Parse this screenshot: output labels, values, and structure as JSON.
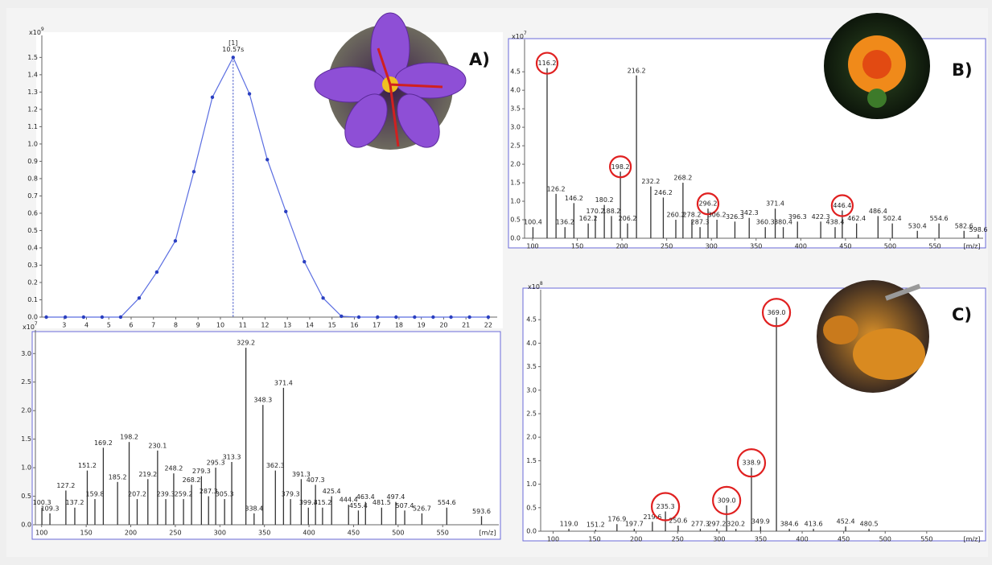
{
  "chart_data": [
    {
      "type": "line",
      "color": "#5b6ee1",
      "x": [
        2.2,
        3.05,
        3.87,
        4.7,
        5.53,
        6.36,
        7.15,
        7.98,
        8.81,
        9.64,
        10.57,
        11.3,
        12.1,
        12.93,
        13.76,
        14.6,
        15.42,
        16.2,
        17.04,
        17.87,
        18.7,
        19.53,
        20.33,
        21.16,
        22.0
      ],
      "values": [
        0,
        0,
        0,
        0,
        0,
        0.11,
        0.26,
        0.44,
        0.84,
        1.27,
        1.5,
        1.29,
        0.91,
        0.61,
        0.32,
        0.11,
        0.005,
        0,
        0,
        0,
        0,
        0,
        0,
        0,
        0
      ],
      "annotation": [
        "[1]",
        "10.57s"
      ],
      "y_unit": {
        "base": "x10",
        "exponent": 9
      },
      "xlim": [
        2.0,
        22.4
      ],
      "xticks": [
        3,
        4,
        5,
        6,
        7,
        8,
        9,
        10,
        11,
        12,
        13,
        14,
        15,
        16,
        17,
        18,
        19,
        20,
        21,
        22
      ],
      "ylim": [
        0,
        1.59
      ],
      "yticks": [
        {
          "value": 0,
          "label": "0.0"
        },
        0.1,
        0.2,
        0.3,
        0.4,
        0.5,
        0.6,
        0.7,
        0.8,
        0.9,
        {
          "value": 1,
          "label": "1.0"
        },
        1.1,
        1.2,
        1.3,
        1.4,
        1.5
      ]
    },
    {
      "type": "bar",
      "color": "#333333",
      "label_color": "#3c3cc8",
      "xlabel": "[m/z]",
      "x": [
        100.3,
        109.3,
        127.2,
        137.2,
        151.2,
        159.8,
        169.2,
        185.2,
        198.2,
        207.2,
        219.2,
        230.1,
        239.3,
        248.2,
        259.2,
        268.2,
        279.3,
        287.3,
        295.3,
        305.3,
        313.3,
        329.2,
        338.4,
        348.3,
        362.3,
        371.4,
        379.3,
        391.3,
        399.3,
        407.3,
        415.2,
        425.4,
        444.4,
        455.4,
        463.4,
        481.5,
        497.4,
        507.4,
        526.7,
        554.6,
        593.6
      ],
      "x_labels": [
        "100.3",
        "109.3",
        "127.2",
        "137.2",
        "151.2",
        "159.8",
        "169.2",
        "185.2",
        "198.2",
        "207.2",
        "219.2",
        "230.1",
        "239.3",
        "248.2",
        "259.2",
        "268.2",
        "279.3",
        "287.3",
        "295.3",
        "305.3",
        "313.3",
        "329.2",
        "338.4",
        "348.3",
        "362.3",
        "371.4",
        "379.3",
        "391.3",
        "399.3",
        "407.3",
        "415.2",
        "425.4",
        "444.4",
        "455.4",
        "463.4",
        "481.5",
        "497.4",
        "507.4",
        "526.7",
        "554.6",
        "593.6"
      ],
      "values": [
        0.3,
        0.2,
        0.6,
        0.3,
        0.95,
        0.45,
        1.35,
        0.75,
        1.45,
        0.45,
        0.8,
        1.3,
        0.45,
        0.9,
        0.45,
        0.7,
        0.85,
        0.5,
        1.0,
        0.45,
        1.1,
        3.1,
        0.2,
        2.1,
        0.95,
        2.4,
        0.45,
        0.8,
        0.3,
        0.7,
        0.3,
        0.5,
        0.35,
        0.25,
        0.4,
        0.3,
        0.4,
        0.25,
        0.2,
        0.3,
        0.15
      ],
      "highlighted": [],
      "y_unit": {
        "base": "x10",
        "exponent": 7
      },
      "xlim": [
        93,
        613
      ],
      "xticks": [
        100,
        150,
        200,
        250,
        300,
        350,
        400,
        450,
        500,
        550
      ],
      "ylim": [
        0,
        3.3
      ],
      "yticks": [
        {
          "value": 0,
          "label": "0.0"
        },
        0.5,
        {
          "value": 1,
          "label": "1.0"
        },
        1.5,
        {
          "value": 2,
          "label": "2.0"
        },
        2.5,
        {
          "value": 3,
          "label": "3.0"
        }
      ]
    },
    {
      "type": "bar",
      "color": "#333333",
      "label_color": "#3c3cc8",
      "xlabel": "[m/z]",
      "highlight_color": "#e02020",
      "x": [
        100.4,
        116.2,
        126.2,
        136.2,
        146.2,
        162.2,
        170.2,
        180.2,
        188.2,
        198.2,
        206.2,
        216.2,
        232.2,
        246.2,
        260.2,
        268.2,
        278.2,
        287.3,
        296.2,
        306.2,
        326.3,
        342.3,
        360.3,
        371.4,
        380.4,
        396.3,
        422.3,
        438.4,
        446.4,
        462.4,
        486.4,
        502.4,
        530.4,
        554.6,
        582.6,
        598.6
      ],
      "x_labels": [
        "100.4",
        "116.2",
        "126.2",
        "136.2",
        "146.2",
        "162.2",
        "170.2",
        "180.2",
        "188.2",
        "198.2",
        "206.2",
        "216.2",
        "232.2",
        "246.2",
        "260.2",
        "268.2",
        "278.2",
        "287.3",
        "296.2",
        "306.2",
        "326.3",
        "342.3",
        "360.3",
        "371.4",
        "380.4",
        "396.3",
        "422.3",
        "438.4",
        "446.4",
        "462.4",
        "486.4",
        "502.4",
        "530.4",
        "554.6",
        "582.6",
        "598.6"
      ],
      "values": [
        0.3,
        4.6,
        1.2,
        0.3,
        0.95,
        0.4,
        0.6,
        0.9,
        0.6,
        1.8,
        0.4,
        4.4,
        1.4,
        1.1,
        0.5,
        1.5,
        0.5,
        0.3,
        0.8,
        0.5,
        0.45,
        0.55,
        0.3,
        0.8,
        0.3,
        0.45,
        0.45,
        0.3,
        0.75,
        0.4,
        0.6,
        0.4,
        0.2,
        0.4,
        0.2,
        0.1
      ],
      "highlighted": [
        1,
        9,
        18,
        28
      ],
      "y_unit": {
        "base": "x10",
        "exponent": 7
      },
      "xlim": [
        91,
        604
      ],
      "xticks": [
        100,
        150,
        200,
        250,
        300,
        350,
        400,
        450,
        500,
        550
      ],
      "ylim": [
        0,
        5.2
      ],
      "yticks": [
        {
          "value": 0,
          "label": "0.0"
        },
        0.5,
        {
          "value": 1,
          "label": "1.0"
        },
        1.5,
        {
          "value": 2,
          "label": "2.0"
        },
        2.5,
        {
          "value": 3,
          "label": "3.0"
        },
        3.5,
        {
          "value": 4,
          "label": "4.0"
        },
        4.5
      ]
    },
    {
      "type": "bar",
      "color": "#333333",
      "label_color": "#3c3cc8",
      "xlabel": "[m/z]",
      "highlight_color": "#e02020",
      "x": [
        119.0,
        151.2,
        176.9,
        197.7,
        219.6,
        235.3,
        250.6,
        277.3,
        297.2,
        309.0,
        320.2,
        338.9,
        349.9,
        369.0,
        384.6,
        413.6,
        452.4,
        480.5
      ],
      "x_labels": [
        "119.0",
        "151.2",
        "176.9",
        "197.7",
        "219.6",
        "235.3",
        "250.6",
        "277.3",
        "297.2",
        "309.0",
        "320.2",
        "338.9",
        "349.9",
        "369.0",
        "384.6",
        "413.6",
        "452.4",
        "480.5"
      ],
      "values": [
        0.05,
        0.03,
        0.15,
        0.05,
        0.2,
        0.42,
        0.12,
        0.05,
        0.05,
        0.55,
        0.05,
        1.35,
        0.1,
        4.55,
        0.05,
        0.05,
        0.1,
        0.05
      ],
      "highlighted": [
        5,
        9,
        11,
        13
      ],
      "y_unit": {
        "base": "x10",
        "exponent": 8
      },
      "xlim": [
        85,
        618
      ],
      "xticks": [
        100,
        150,
        200,
        250,
        300,
        350,
        400,
        450,
        500,
        550
      ],
      "ylim": [
        0,
        5.0
      ],
      "yticks": [
        {
          "value": 0,
          "label": "0.0"
        },
        0.5,
        {
          "value": 1,
          "label": "1.0"
        },
        1.5,
        {
          "value": 2,
          "label": "2.0"
        },
        2.5,
        {
          "value": 3,
          "label": "3.0"
        },
        3.5,
        {
          "value": 4,
          "label": "4.0"
        },
        4.5
      ]
    }
  ],
  "panel_labels": [
    "A)",
    "B)",
    "C)"
  ]
}
